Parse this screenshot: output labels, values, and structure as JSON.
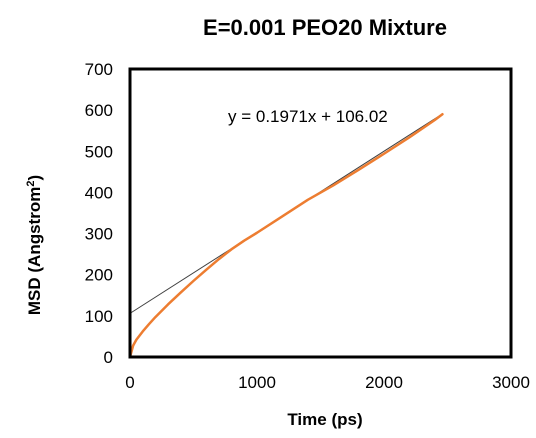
{
  "chart_data": {
    "type": "line",
    "title": "E=0.001 PEO20 Mixture",
    "xlabel": "Time (ps)",
    "ylabel_main": "MSD (Angstrom",
    "ylabel_sup": "2",
    "ylabel_close": ")",
    "xlim": [
      0,
      3000
    ],
    "ylim": [
      0,
      700
    ],
    "xticks": [
      "0",
      "1000",
      "2000",
      "3000"
    ],
    "yticks": [
      "0",
      "100",
      "200",
      "300",
      "400",
      "500",
      "600",
      "700"
    ],
    "grid": false,
    "legend": "none",
    "series": [
      {
        "color": "#ED7D31",
        "x": [
          0,
          25,
          50,
          100,
          150,
          200,
          300,
          400,
          500,
          600,
          700,
          800,
          900,
          1000,
          1200,
          1400,
          1600,
          1800,
          2000,
          2200,
          2400,
          2460
        ],
        "y": [
          0,
          28,
          42,
          62,
          80,
          97,
          128,
          157,
          185,
          212,
          238,
          262,
          283,
          302,
          342,
          382,
          417,
          455,
          494,
          534,
          576,
          590
        ]
      }
    ],
    "trendline": {
      "color": "#404040",
      "slope": 0.1971,
      "intercept": 106.02,
      "x_range": [
        0,
        2460
      ],
      "equation_text": "y = 0.1971x + 106.02"
    }
  }
}
